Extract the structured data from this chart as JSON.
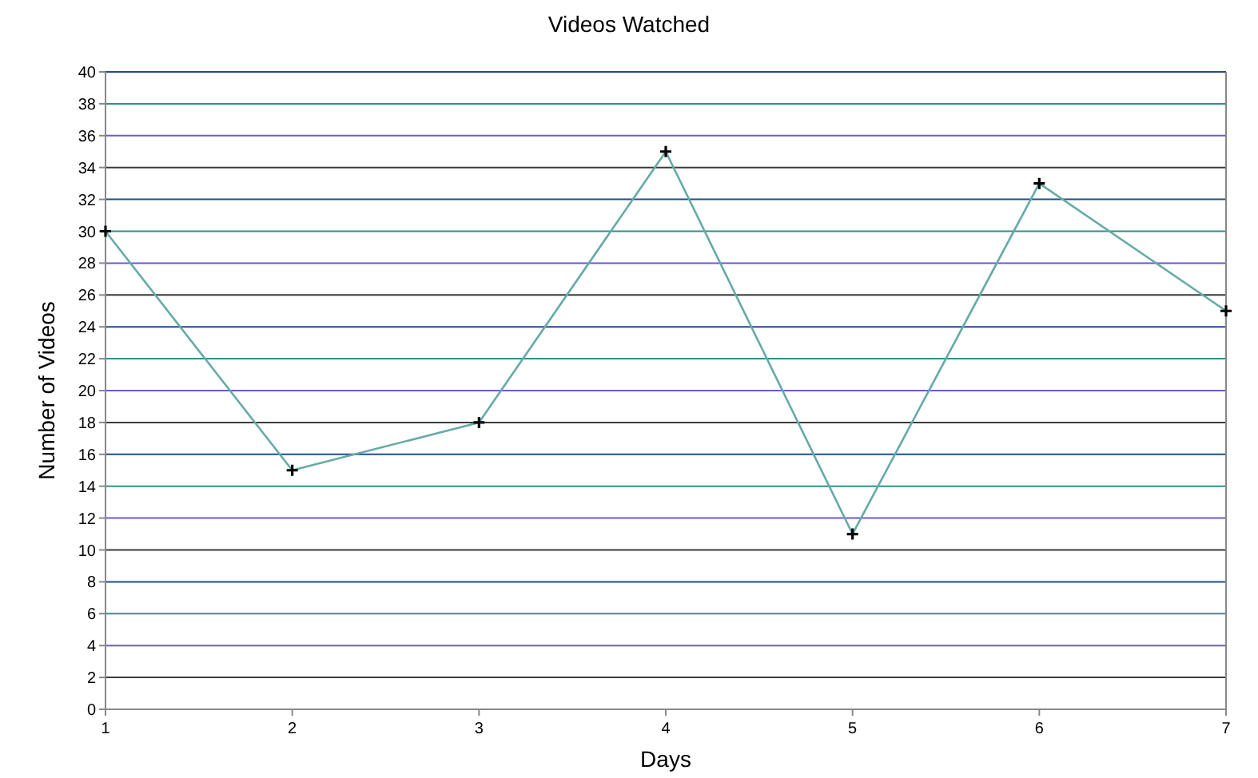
{
  "chart_data": {
    "type": "line",
    "title": "Videos Watched",
    "xlabel": "Days",
    "ylabel": "Number of Videos",
    "x": [
      1,
      2,
      3,
      4,
      5,
      6,
      7
    ],
    "series": [
      {
        "color": "#66aaa8",
        "values": [
          30,
          15,
          18,
          35,
          11,
          33,
          25
        ]
      }
    ],
    "xlim": [
      1,
      7
    ],
    "xticks": [
      1,
      2,
      3,
      4,
      5,
      6,
      7
    ],
    "ylim": [
      0,
      40
    ],
    "yticks": [
      0,
      2,
      4,
      6,
      8,
      10,
      12,
      14,
      16,
      18,
      20,
      22,
      24,
      26,
      28,
      30,
      32,
      34,
      36,
      38,
      40
    ],
    "grid": "y",
    "marker": "cross",
    "line_style": "solid"
  }
}
